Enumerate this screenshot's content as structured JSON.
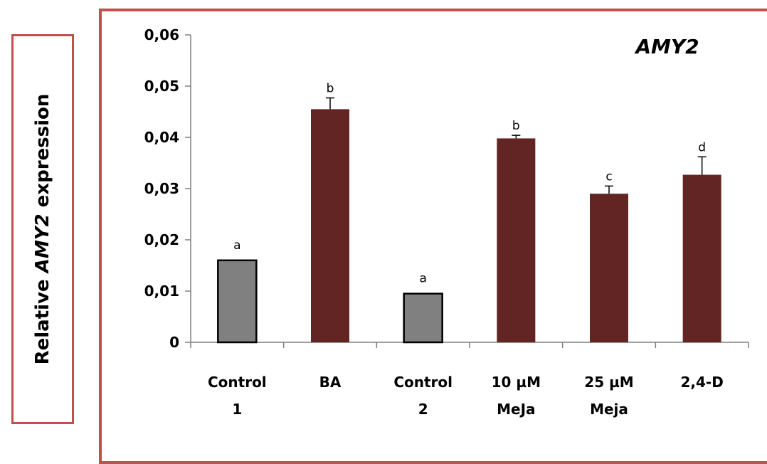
{
  "y_axis_label": {
    "before": "Relative ",
    "italic": "AMY2",
    "after": " expression"
  },
  "chart_data": {
    "type": "bar",
    "title": "AMY2",
    "categories": [
      [
        "Control",
        "1"
      ],
      [
        "BA"
      ],
      [
        "Control",
        "2"
      ],
      [
        "10 µM",
        "MeJa"
      ],
      [
        "25 µM",
        "Meja"
      ],
      [
        "2,4-D"
      ]
    ],
    "values": [
      0.016,
      0.0455,
      0.0095,
      0.0398,
      0.029,
      0.0327
    ],
    "errors": [
      0,
      0.0022,
      0,
      0.0006,
      0.0015,
      0.0035
    ],
    "significance": [
      "a",
      "b",
      "a",
      "b",
      "c",
      "d"
    ],
    "bar_colors": [
      "#808080",
      "#632523",
      "#808080",
      "#632523",
      "#632523",
      "#632523"
    ],
    "ylim": [
      0,
      0.06
    ],
    "yticks": [
      0,
      0.01,
      0.02,
      0.03,
      0.04,
      0.05,
      0.06
    ],
    "ytick_labels": [
      "0",
      "0,01",
      "0,02",
      "0,03",
      "0,04",
      "0,05",
      "0,06"
    ],
    "grid": false,
    "legend": "none"
  }
}
